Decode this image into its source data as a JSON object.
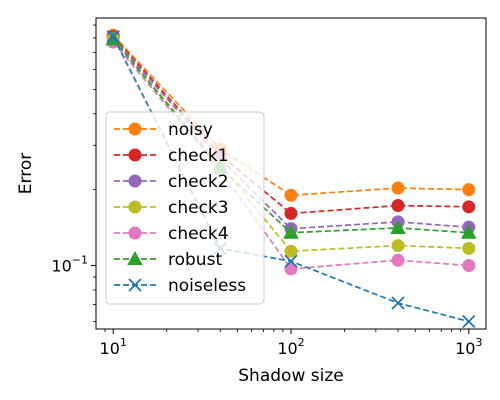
{
  "chart_data": {
    "type": "line",
    "xscale": "log",
    "yscale": "log",
    "xlabel": "Shadow size",
    "ylabel": "Error",
    "xlim": [
      8,
      1250
    ],
    "ylim": [
      0.056,
      0.96
    ],
    "legend_position": "lower-left",
    "grid": false,
    "x": [
      10,
      40,
      100,
      400,
      1000
    ],
    "series": [
      {
        "name": "noisy",
        "color": "#ff7f0e",
        "marker": "circle",
        "values": [
          0.82,
          0.29,
          0.19,
          0.203,
          0.2
        ]
      },
      {
        "name": "check1",
        "color": "#d62728",
        "marker": "circle",
        "values": [
          0.81,
          0.275,
          0.161,
          0.173,
          0.171
        ]
      },
      {
        "name": "check2",
        "color": "#9467bd",
        "marker": "circle",
        "values": [
          0.8,
          0.265,
          0.14,
          0.149,
          0.142
        ]
      },
      {
        "name": "check3",
        "color": "#bcbd22",
        "marker": "circle",
        "values": [
          0.79,
          0.25,
          0.114,
          0.12,
          0.117
        ]
      },
      {
        "name": "check4",
        "color": "#e377c2",
        "marker": "circle",
        "values": [
          0.77,
          0.24,
          0.097,
          0.105,
          0.1
        ]
      },
      {
        "name": "robust",
        "color": "#2ca02c",
        "marker": "triangle",
        "values": [
          0.79,
          0.245,
          0.135,
          0.141,
          0.135
        ]
      },
      {
        "name": "noiseless",
        "color": "#1f77b4",
        "marker": "x",
        "values": [
          0.81,
          0.117,
          0.104,
          0.071,
          0.06
        ]
      }
    ],
    "xticks": [
      {
        "value": 10,
        "base": "10",
        "exp": "1"
      },
      {
        "value": 100,
        "base": "10",
        "exp": "2"
      },
      {
        "value": 1000,
        "base": "10",
        "exp": "3"
      }
    ],
    "yticks": [
      {
        "value": 0.1,
        "base": "10",
        "exp": "−1"
      }
    ]
  }
}
